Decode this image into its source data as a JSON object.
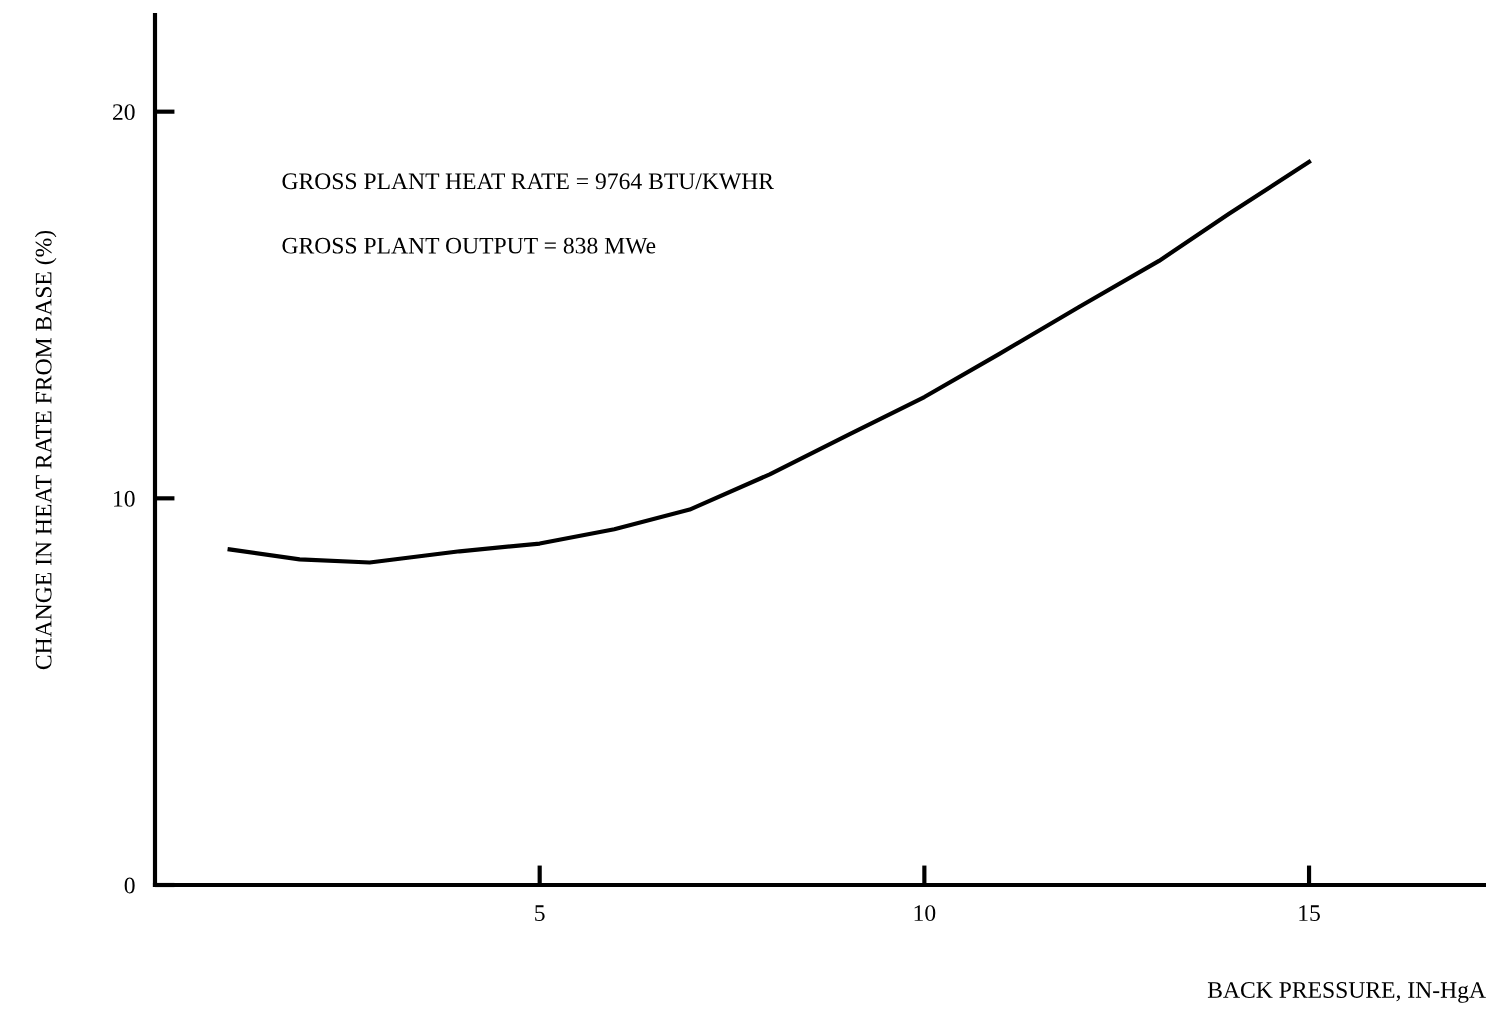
{
  "chart_data": {
    "type": "line",
    "xlabel": "BACK PRESSURE, IN-HgA",
    "ylabel": "CHANGE IN HEAT RATE FROM BASE (%)",
    "annotations": [
      "GROSS PLANT HEAT RATE = 9764 BTU/KWHR",
      "GROSS PLANT OUTPUT = 838 MWe"
    ],
    "x": [
      0.97,
      1.88,
      2.79,
      3.96,
      5.0,
      5.97,
      6.95,
      7.99,
      9.03,
      10.0,
      10.97,
      12.01,
      13.05,
      13.96,
      15.0
    ],
    "series": [
      {
        "color": "#000000",
        "values": [
          8.68,
          8.42,
          8.34,
          8.63,
          8.83,
          9.2,
          9.71,
          10.62,
          11.66,
          12.62,
          13.73,
          14.95,
          16.14,
          17.36,
          18.7
        ]
      }
    ],
    "xlim": [
      0,
      17.3
    ],
    "ylim": [
      0,
      22.5
    ],
    "xticks": [
      5,
      10,
      15
    ],
    "yticks": [
      0,
      10,
      20
    ],
    "grid": false,
    "legend": false,
    "marker": "none",
    "line_style": "solid"
  }
}
